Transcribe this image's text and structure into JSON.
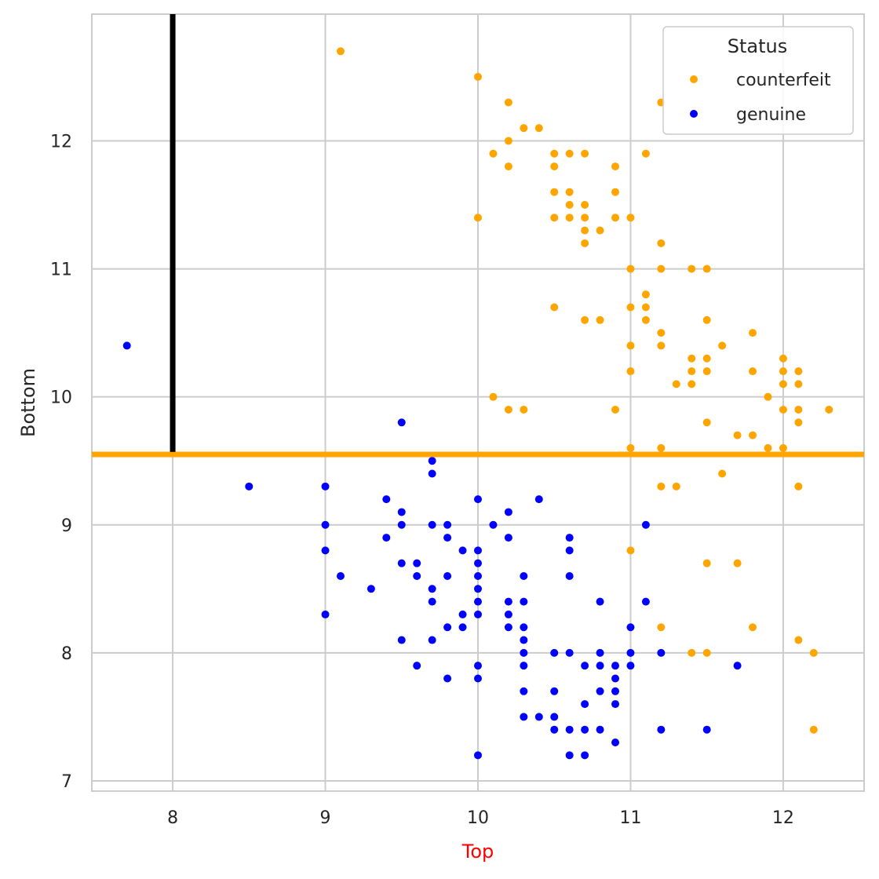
{
  "chart_data": {
    "type": "scatter",
    "xlabel": "Top",
    "ylabel": "Bottom",
    "xlabel_color": "#ff0000",
    "xlim": [
      7.47,
      12.53
    ],
    "ylim": [
      6.92,
      12.99
    ],
    "xticks": [
      8,
      9,
      10,
      11,
      12
    ],
    "yticks": [
      7,
      8,
      9,
      10,
      11,
      12
    ],
    "grid": true,
    "legend": {
      "title": "Status",
      "placement": "top-right"
    },
    "reference_lines": [
      {
        "orientation": "horizontal",
        "y": 9.55,
        "color": "#ffa500"
      },
      {
        "orientation": "vertical",
        "x": 8.0,
        "y_from": 9.57,
        "y_to": 12.99,
        "color": "#000000"
      }
    ],
    "series": [
      {
        "name": "counterfeit",
        "color": "#ffa500",
        "points": [
          [
            9.1,
            12.7
          ],
          [
            10.0,
            12.5
          ],
          [
            10.2,
            12.3
          ],
          [
            10.3,
            12.1
          ],
          [
            10.4,
            12.1
          ],
          [
            10.2,
            12.0
          ],
          [
            10.1,
            11.9
          ],
          [
            10.5,
            11.9
          ],
          [
            10.6,
            11.9
          ],
          [
            10.7,
            11.9
          ],
          [
            11.1,
            11.9
          ],
          [
            10.2,
            11.8
          ],
          [
            10.5,
            11.8
          ],
          [
            10.9,
            11.8
          ],
          [
            10.5,
            11.6
          ],
          [
            10.6,
            11.6
          ],
          [
            10.9,
            11.6
          ],
          [
            10.6,
            11.5
          ],
          [
            10.7,
            11.5
          ],
          [
            10.0,
            11.4
          ],
          [
            10.5,
            11.4
          ],
          [
            10.6,
            11.4
          ],
          [
            10.7,
            11.4
          ],
          [
            10.9,
            11.4
          ],
          [
            11.0,
            11.4
          ],
          [
            10.7,
            11.3
          ],
          [
            10.8,
            11.3
          ],
          [
            10.7,
            11.2
          ],
          [
            11.2,
            11.2
          ],
          [
            11.0,
            11.0
          ],
          [
            11.2,
            11.0
          ],
          [
            11.4,
            11.0
          ],
          [
            11.5,
            11.0
          ],
          [
            11.1,
            10.8
          ],
          [
            10.5,
            10.7
          ],
          [
            11.0,
            10.7
          ],
          [
            11.1,
            10.7
          ],
          [
            10.7,
            10.6
          ],
          [
            10.8,
            10.6
          ],
          [
            11.1,
            10.6
          ],
          [
            11.5,
            10.6
          ],
          [
            11.2,
            10.5
          ],
          [
            11.8,
            10.5
          ],
          [
            11.0,
            10.4
          ],
          [
            11.2,
            10.4
          ],
          [
            11.6,
            10.4
          ],
          [
            11.4,
            10.3
          ],
          [
            11.5,
            10.3
          ],
          [
            12.0,
            10.3
          ],
          [
            11.0,
            10.2
          ],
          [
            11.4,
            10.2
          ],
          [
            11.5,
            10.2
          ],
          [
            11.8,
            10.2
          ],
          [
            12.0,
            10.2
          ],
          [
            12.1,
            10.2
          ],
          [
            11.3,
            10.1
          ],
          [
            11.4,
            10.1
          ],
          [
            12.0,
            10.1
          ],
          [
            12.1,
            10.1
          ],
          [
            10.1,
            10.0
          ],
          [
            11.9,
            10.0
          ],
          [
            10.2,
            9.9
          ],
          [
            10.3,
            9.9
          ],
          [
            10.9,
            9.9
          ],
          [
            12.0,
            9.9
          ],
          [
            12.1,
            9.9
          ],
          [
            12.3,
            9.9
          ],
          [
            11.5,
            9.8
          ],
          [
            12.1,
            9.8
          ],
          [
            11.7,
            9.7
          ],
          [
            11.8,
            9.7
          ],
          [
            11.0,
            9.6
          ],
          [
            11.2,
            9.6
          ],
          [
            11.9,
            9.6
          ],
          [
            12.0,
            9.6
          ],
          [
            11.6,
            9.4
          ],
          [
            11.2,
            9.3
          ],
          [
            11.3,
            9.3
          ],
          [
            12.1,
            9.3
          ],
          [
            11.0,
            8.8
          ],
          [
            11.5,
            8.7
          ],
          [
            11.7,
            8.7
          ],
          [
            11.2,
            8.2
          ],
          [
            11.8,
            8.2
          ],
          [
            12.1,
            8.1
          ],
          [
            11.4,
            8.0
          ],
          [
            11.5,
            8.0
          ],
          [
            12.2,
            8.0
          ],
          [
            12.2,
            7.4
          ],
          [
            11.2,
            12.3
          ]
        ]
      },
      {
        "name": "genuine",
        "color": "#0000ff",
        "points": [
          [
            7.7,
            10.4
          ],
          [
            9.5,
            9.8
          ],
          [
            9.7,
            9.5
          ],
          [
            9.7,
            9.4
          ],
          [
            8.5,
            9.3
          ],
          [
            9.0,
            9.3
          ],
          [
            9.4,
            9.2
          ],
          [
            10.0,
            9.2
          ],
          [
            10.4,
            9.2
          ],
          [
            9.5,
            9.1
          ],
          [
            10.2,
            9.1
          ],
          [
            9.0,
            9.0
          ],
          [
            9.5,
            9.0
          ],
          [
            9.7,
            9.0
          ],
          [
            9.8,
            9.0
          ],
          [
            10.1,
            9.0
          ],
          [
            11.1,
            9.0
          ],
          [
            9.4,
            8.9
          ],
          [
            9.8,
            8.9
          ],
          [
            10.2,
            8.9
          ],
          [
            10.6,
            8.9
          ],
          [
            9.0,
            8.8
          ],
          [
            9.9,
            8.8
          ],
          [
            10.0,
            8.8
          ],
          [
            10.6,
            8.8
          ],
          [
            9.5,
            8.7
          ],
          [
            9.6,
            8.7
          ],
          [
            10.0,
            8.7
          ],
          [
            9.1,
            8.6
          ],
          [
            9.6,
            8.6
          ],
          [
            9.8,
            8.6
          ],
          [
            10.0,
            8.6
          ],
          [
            10.3,
            8.6
          ],
          [
            10.6,
            8.6
          ],
          [
            9.3,
            8.5
          ],
          [
            9.7,
            8.5
          ],
          [
            10.0,
            8.5
          ],
          [
            9.7,
            8.4
          ],
          [
            10.0,
            8.4
          ],
          [
            10.2,
            8.4
          ],
          [
            10.3,
            8.4
          ],
          [
            10.8,
            8.4
          ],
          [
            11.1,
            8.4
          ],
          [
            9.0,
            8.3
          ],
          [
            9.9,
            8.3
          ],
          [
            10.0,
            8.3
          ],
          [
            10.2,
            8.3
          ],
          [
            9.8,
            8.2
          ],
          [
            9.9,
            8.2
          ],
          [
            10.2,
            8.2
          ],
          [
            10.3,
            8.2
          ],
          [
            11.0,
            8.2
          ],
          [
            9.5,
            8.1
          ],
          [
            9.7,
            8.1
          ],
          [
            10.3,
            8.1
          ],
          [
            10.3,
            8.0
          ],
          [
            10.5,
            8.0
          ],
          [
            10.6,
            8.0
          ],
          [
            10.8,
            8.0
          ],
          [
            11.0,
            8.0
          ],
          [
            11.2,
            8.0
          ],
          [
            9.6,
            7.9
          ],
          [
            10.0,
            7.9
          ],
          [
            10.3,
            7.9
          ],
          [
            10.7,
            7.9
          ],
          [
            10.8,
            7.9
          ],
          [
            10.9,
            7.9
          ],
          [
            11.0,
            7.9
          ],
          [
            11.7,
            7.9
          ],
          [
            9.8,
            7.8
          ],
          [
            10.0,
            7.8
          ],
          [
            10.9,
            7.8
          ],
          [
            10.3,
            7.7
          ],
          [
            10.5,
            7.7
          ],
          [
            10.8,
            7.7
          ],
          [
            10.9,
            7.7
          ],
          [
            10.7,
            7.6
          ],
          [
            10.9,
            7.6
          ],
          [
            10.3,
            7.5
          ],
          [
            10.4,
            7.5
          ],
          [
            10.5,
            7.5
          ],
          [
            10.5,
            7.4
          ],
          [
            10.6,
            7.4
          ],
          [
            10.7,
            7.4
          ],
          [
            10.8,
            7.4
          ],
          [
            11.2,
            7.4
          ],
          [
            11.5,
            7.4
          ],
          [
            10.9,
            7.3
          ],
          [
            10.0,
            7.2
          ],
          [
            10.6,
            7.2
          ],
          [
            10.7,
            7.2
          ]
        ]
      }
    ]
  }
}
